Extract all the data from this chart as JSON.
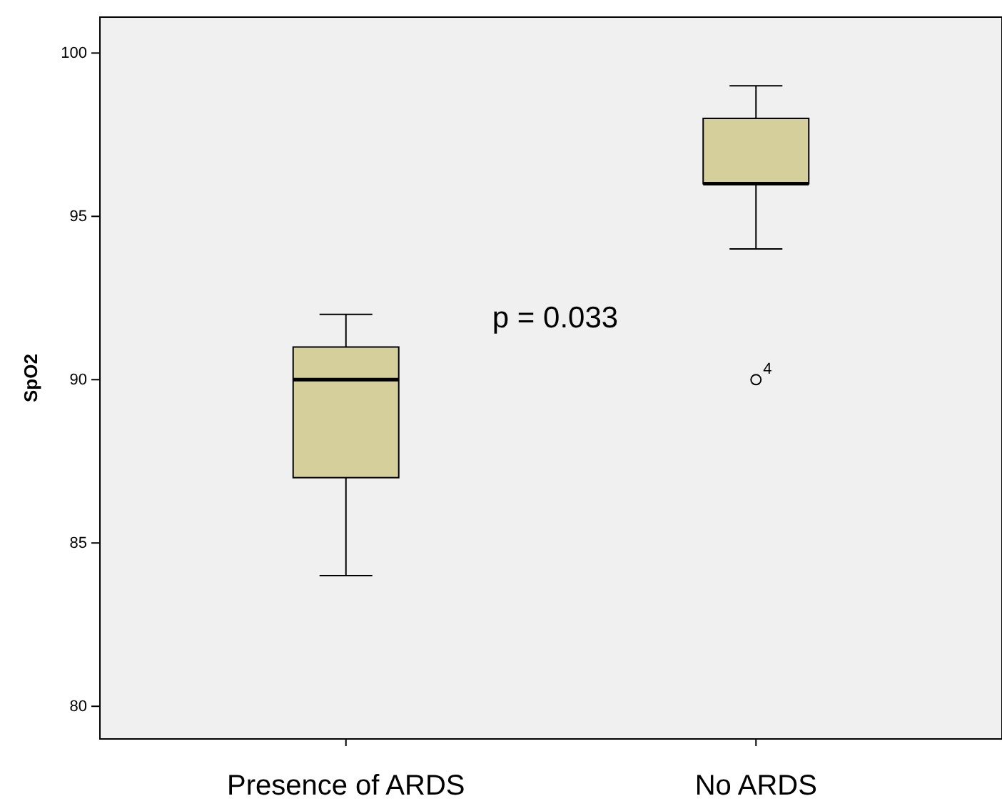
{
  "chart_data": {
    "type": "box",
    "ylabel": "SpO2",
    "categories": [
      "Presence of ARDS",
      "No ARDS"
    ],
    "boxes": [
      {
        "low": 84,
        "q1": 87,
        "median": 90,
        "q3": 91,
        "high": 92
      },
      {
        "low": 94,
        "q1": 96,
        "median": 96,
        "q3": 98,
        "high": 99,
        "outliers": [
          90
        ]
      }
    ],
    "color": "#d5cf9c",
    "ylim": [
      79,
      101.1
    ],
    "yticks": [
      80,
      85,
      90,
      95,
      100
    ],
    "grid": false,
    "annotations": [
      "p = 0.033",
      "4"
    ]
  }
}
